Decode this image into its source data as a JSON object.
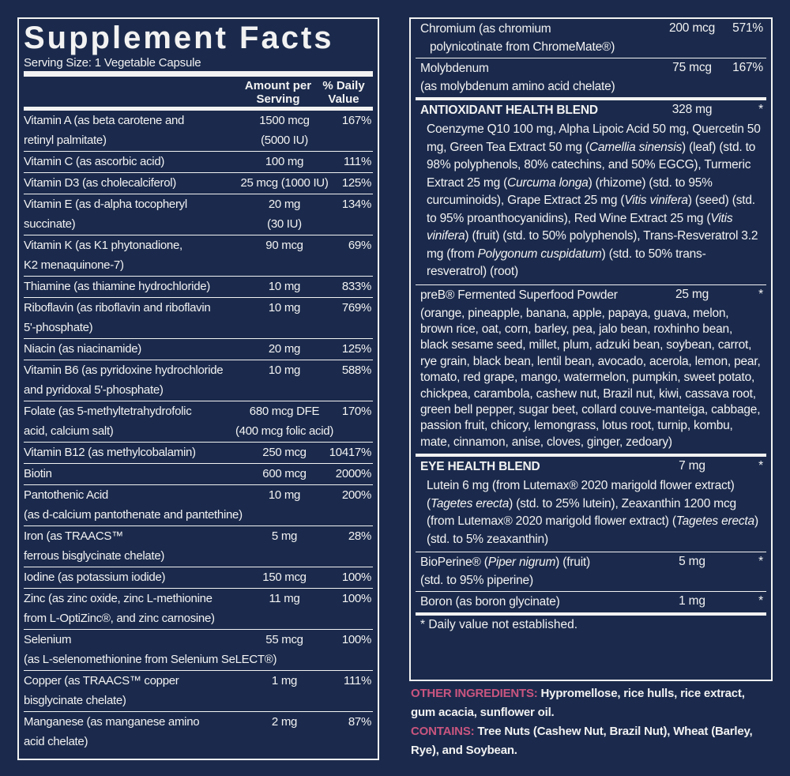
{
  "header": {
    "title": "Supplement Facts",
    "serving_size": "Serving Size: 1 Vegetable Capsule",
    "amount_heading": "Amount per Serving",
    "daily_value_heading": "% Daily Value"
  },
  "nutrients": [
    {
      "name": [
        "Vitamin A (as beta carotene and",
        "retinyl palmitate)"
      ],
      "amount": "1500 mcg",
      "amount_note": "(5000 IU)",
      "dv": "167%"
    },
    {
      "name": [
        "Vitamin C (as ascorbic acid)"
      ],
      "amount": "100 mg",
      "dv": "111%"
    },
    {
      "name": [
        "Vitamin D3 (as cholecalciferol)"
      ],
      "amount": "25 mcg (1000 IU)",
      "dv": "125%"
    },
    {
      "name": [
        "Vitamin E (as d-alpha tocopheryl",
        "succinate)"
      ],
      "amount": "20 mg",
      "amount_note": "(30 IU)",
      "dv": "134%"
    },
    {
      "name": [
        "Vitamin K (as K1 phytonadione,",
        "K2 menaquinone-7)"
      ],
      "amount": "90 mcg",
      "dv": "69%"
    },
    {
      "name": [
        "Thiamine (as thiamine hydrochloride)"
      ],
      "amount": "10 mg",
      "dv": "833%"
    },
    {
      "name": [
        "Riboflavin (as riboflavin and riboflavin",
        "5'-phosphate)"
      ],
      "amount": "10 mg",
      "dv": "769%"
    },
    {
      "name": [
        "Niacin (as niacinamide)"
      ],
      "amount": "20 mg",
      "dv": "125%"
    },
    {
      "name": [
        "Vitamin B6 (as pyridoxine hydrochloride",
        "and pyridoxal 5'-phosphate)"
      ],
      "amount": "10 mg",
      "dv": "588%"
    },
    {
      "name": [
        "Folate (as 5-methyltetrahydrofolic",
        "acid, calcium salt)"
      ],
      "amount": "680 mcg DFE",
      "amount_note": "(400 mcg folic acid)",
      "dv": "170%"
    },
    {
      "name": [
        "Vitamin B12 (as methylcobalamin)"
      ],
      "amount": "250 mcg",
      "dv": "10417%"
    },
    {
      "name": [
        "Biotin"
      ],
      "amount": "600 mcg",
      "dv": "2000%"
    },
    {
      "name": [
        "Pantothenic Acid",
        "(as d-calcium pantothenate and pantethine)"
      ],
      "amount": "10 mg",
      "dv": "200%"
    },
    {
      "name": [
        "Iron (as TRAACS™",
        "ferrous bisglycinate chelate)"
      ],
      "amount": "5 mg",
      "dv": "28%"
    },
    {
      "name": [
        "Iodine (as potassium iodide)"
      ],
      "amount": "150 mcg",
      "dv": "100%"
    },
    {
      "name": [
        "Zinc (as zinc oxide, zinc L-methionine",
        "from L-OptiZinc®, and zinc carnosine)"
      ],
      "amount": "11 mg",
      "dv": "100%"
    },
    {
      "name": [
        "Selenium",
        "(as L-selenomethionine from Selenium SeLECT®)"
      ],
      "amount": "55 mcg",
      "dv": "100%"
    },
    {
      "name": [
        "Copper (as TRAACS™ copper",
        "bisglycinate chelate)"
      ],
      "amount": "1 mg",
      "dv": "111%"
    },
    {
      "name": [
        "Manganese (as manganese amino",
        "acid chelate)"
      ],
      "amount": "2 mg",
      "dv": "87%"
    }
  ],
  "right_nutrients": [
    {
      "name": [
        "Chromium (as chromium",
        "polynicotinate from ChromeMate®)"
      ],
      "amount": "200 mcg",
      "dv": "571%"
    },
    {
      "name": [
        "Molybdenum",
        "(as molybdenum amino acid chelate)"
      ],
      "amount": "75 mcg",
      "dv": "167%"
    }
  ],
  "blends": [
    {
      "title": "ANTIOXIDANT HEALTH BLEND",
      "bold": true,
      "amount": "328 mg",
      "dv": "*",
      "description": [
        {
          "text": "Coenzyme Q10 100 mg, Alpha Lipoic Acid 50 mg, Quercetin 50 mg, Green Tea Extract 50 mg ("
        },
        {
          "text": "Camellia sinensis",
          "italic": true
        },
        {
          "text": ") (leaf) (std. to 98% polyphenols, 80% catechins, and 50% EGCG), Turmeric Extract 25 mg ("
        },
        {
          "text": "Curcuma longa",
          "italic": true
        },
        {
          "text": ") (rhizome) (std. to 95% curcuminoids), Grape Extract 25 mg ("
        },
        {
          "text": "Vitis vinifera",
          "italic": true
        },
        {
          "text": ") (seed) (std. to 95% proanthocyanidins), Red Wine Extract 25 mg ("
        },
        {
          "text": "Vitis vinifera",
          "italic": true
        },
        {
          "text": ") (fruit) (std. to 50% polyphenols), Trans-Resveratrol 3.2 mg (from "
        },
        {
          "text": "Polygonum cuspidatum",
          "italic": true
        },
        {
          "text": ") (std. to 50% trans-resveratrol) (root)"
        }
      ]
    },
    {
      "title": "preB® Fermented Superfood Powder",
      "bold": false,
      "amount": "25 mg",
      "dv": "*",
      "description": [
        {
          "text": "(orange, pineapple, banana, apple, papaya, guava, melon, brown rice, oat, corn, barley, pea, jalo bean, roxhinho bean, black sesame seed, millet, plum, adzuki bean, soybean, carrot, rye grain, black bean, lentil bean, avocado, acerola, lemon, pear, tomato, red grape, mango, watermelon, pumpkin, sweet potato, chickpea, carambola, cashew nut, Brazil nut, kiwi, cassava root, green bell pepper, sugar beet, collard couve-manteiga, cabbage, passion fruit, chicory, lemongrass, lotus root, turnip, kombu, mate, cinnamon, anise, cloves, ginger, zedoary)"
        }
      ]
    },
    {
      "title": "EYE HEALTH BLEND",
      "bold": true,
      "amount": "7 mg",
      "dv": "*",
      "description": [
        {
          "text": "Lutein 6 mg (from Lutemax® 2020 marigold flower extract) ("
        },
        {
          "text": "Tagetes erecta",
          "italic": true
        },
        {
          "text": ") (std. to 25% lutein), Zeaxanthin 1200 mcg (from Lutemax® 2020 marigold flower extract) ("
        },
        {
          "text": "Tagetes erecta",
          "italic": true
        },
        {
          "text": ") (std. to 5% zeaxanthin)"
        }
      ]
    }
  ],
  "extras": [
    {
      "name": [
        [
          {
            "text": "BioPerine® ("
          },
          {
            "text": "Piper nigrum",
            "italic": true
          },
          {
            "text": ") (fruit)"
          }
        ],
        "(std. to 95% piperine)"
      ],
      "amount": "5 mg",
      "dv": "*"
    },
    {
      "name": [
        "Boron (as boron glycinate)"
      ],
      "amount": "1 mg",
      "dv": "*"
    }
  ],
  "footnote": "* Daily value not established.",
  "other_ingredients": {
    "label": "OTHER INGREDIENTS:",
    "text": "Hypromellose, rice hulls, rice extract, gum acacia, sunflower oil."
  },
  "contains": {
    "label": "CONTAINS:",
    "text": "Tree Nuts (Cashew Nut, Brazil Nut), Wheat (Barley, Rye), and Soybean."
  }
}
